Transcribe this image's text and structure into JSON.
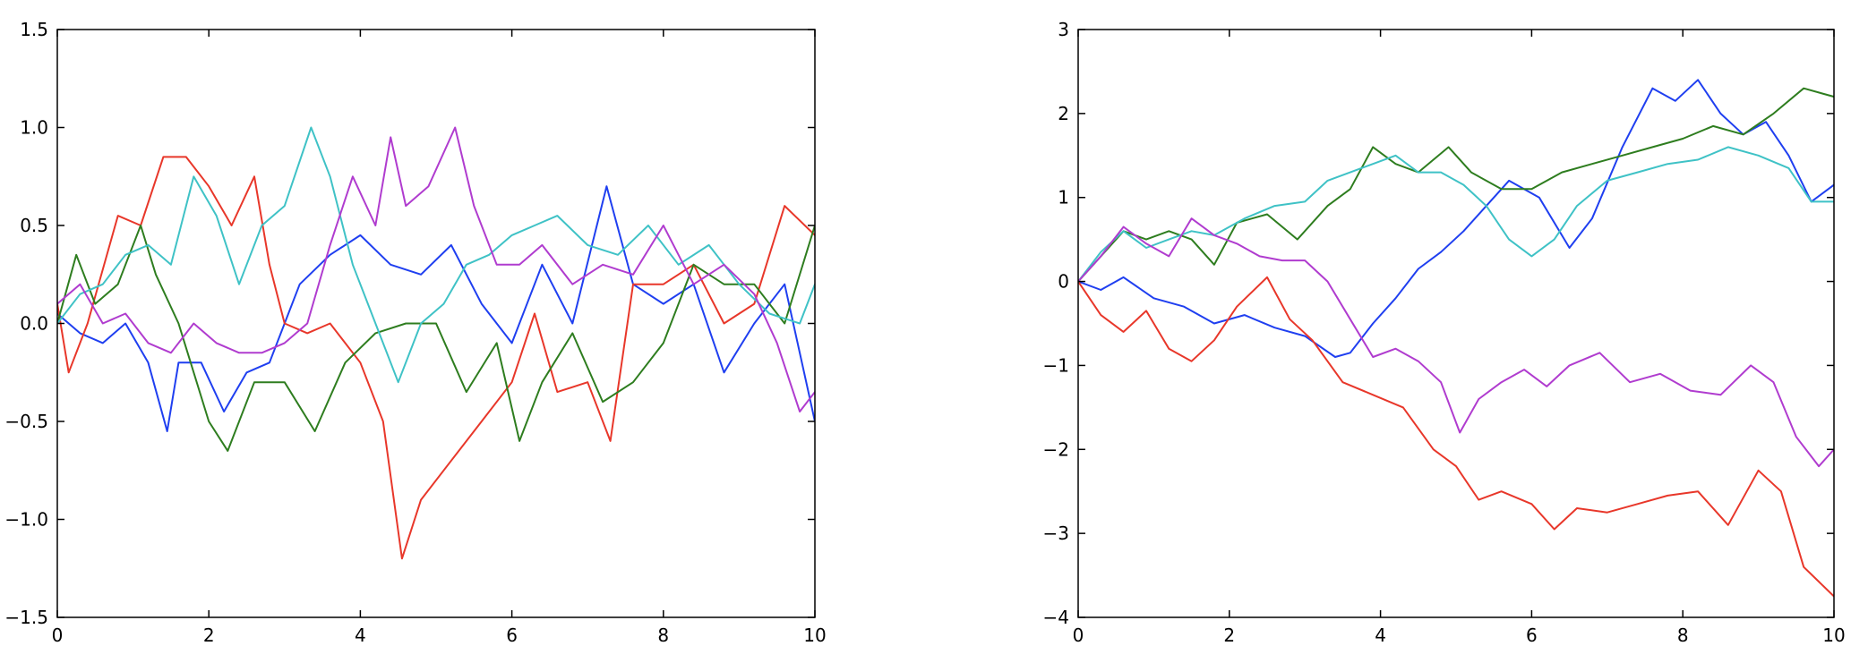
{
  "chart_data": [
    {
      "type": "line",
      "title": "",
      "xlabel": "",
      "ylabel": "",
      "xlim": [
        0,
        10
      ],
      "ylim": [
        -1.5,
        1.5
      ],
      "xticks": [
        0,
        2,
        4,
        6,
        8,
        10
      ],
      "xtick_labels": [
        "0",
        "2",
        "4",
        "6",
        "8",
        "10"
      ],
      "yticks": [
        -1.5,
        -1.0,
        -0.5,
        0.0,
        0.5,
        1.0,
        1.5
      ],
      "ytick_labels": [
        "−1.5",
        "−1.0",
        "−0.5",
        "0.0",
        "0.5",
        "1.0",
        "1.5"
      ],
      "grid": false,
      "legend": "none",
      "series": [
        {
          "color": "#1f3ff0",
          "x": [
            0,
            0.3,
            0.6,
            0.9,
            1.2,
            1.45,
            1.6,
            1.9,
            2.2,
            2.5,
            2.8,
            3.2,
            3.6,
            4.0,
            4.4,
            4.8,
            5.2,
            5.6,
            6.0,
            6.4,
            6.8,
            7.25,
            7.6,
            8.0,
            8.4,
            8.8,
            9.2,
            9.6,
            10.0
          ],
          "y": [
            0.05,
            -0.05,
            -0.1,
            0.0,
            -0.2,
            -0.55,
            -0.2,
            -0.2,
            -0.45,
            -0.25,
            -0.2,
            0.2,
            0.35,
            0.45,
            0.3,
            0.25,
            0.4,
            0.1,
            -0.1,
            0.3,
            0.0,
            0.7,
            0.2,
            0.1,
            0.2,
            -0.25,
            0.0,
            0.2,
            -0.5
          ]
        },
        {
          "color": "#e8372a",
          "x": [
            0,
            0.15,
            0.4,
            0.8,
            1.1,
            1.4,
            1.7,
            2.0,
            2.3,
            2.6,
            2.8,
            3.0,
            3.3,
            3.6,
            4.0,
            4.3,
            4.55,
            4.8,
            5.2,
            5.6,
            6.0,
            6.3,
            6.6,
            7.0,
            7.3,
            7.6,
            8.0,
            8.4,
            8.8,
            9.2,
            9.6,
            10.0
          ],
          "y": [
            0.1,
            -0.25,
            0.0,
            0.55,
            0.5,
            0.85,
            0.85,
            0.7,
            0.5,
            0.75,
            0.3,
            0.0,
            -0.05,
            0.0,
            -0.2,
            -0.5,
            -1.2,
            -0.9,
            -0.7,
            -0.5,
            -0.3,
            0.05,
            -0.35,
            -0.3,
            -0.6,
            0.2,
            0.2,
            0.3,
            0.0,
            0.1,
            0.6,
            0.45
          ]
        },
        {
          "color": "#2e7d1f",
          "x": [
            0,
            0.25,
            0.5,
            0.8,
            1.1,
            1.3,
            1.6,
            2.0,
            2.25,
            2.6,
            3.0,
            3.4,
            3.8,
            4.2,
            4.6,
            5.0,
            5.4,
            5.8,
            6.1,
            6.4,
            6.8,
            7.2,
            7.6,
            8.0,
            8.4,
            8.8,
            9.2,
            9.6,
            10.0
          ],
          "y": [
            0.0,
            0.35,
            0.1,
            0.2,
            0.5,
            0.25,
            0.0,
            -0.5,
            -0.65,
            -0.3,
            -0.3,
            -0.55,
            -0.2,
            -0.05,
            0.0,
            0.0,
            -0.35,
            -0.1,
            -0.6,
            -0.3,
            -0.05,
            -0.4,
            -0.3,
            -0.1,
            0.3,
            0.2,
            0.2,
            0.0,
            0.5
          ]
        },
        {
          "color": "#3fc2c6",
          "x": [
            0,
            0.3,
            0.6,
            0.9,
            1.2,
            1.5,
            1.8,
            2.1,
            2.4,
            2.7,
            3.0,
            3.35,
            3.6,
            3.9,
            4.2,
            4.5,
            4.8,
            5.1,
            5.4,
            5.7,
            6.0,
            6.3,
            6.6,
            7.0,
            7.4,
            7.8,
            8.2,
            8.6,
            9.0,
            9.4,
            9.8,
            10.0
          ],
          "y": [
            0.0,
            0.15,
            0.2,
            0.35,
            0.4,
            0.3,
            0.75,
            0.55,
            0.2,
            0.5,
            0.6,
            1.0,
            0.75,
            0.3,
            0.0,
            -0.3,
            0.0,
            0.1,
            0.3,
            0.35,
            0.45,
            0.5,
            0.55,
            0.4,
            0.35,
            0.5,
            0.3,
            0.4,
            0.2,
            0.05,
            0.0,
            0.2
          ]
        },
        {
          "color": "#b03ccf",
          "x": [
            0,
            0.3,
            0.6,
            0.9,
            1.2,
            1.5,
            1.8,
            2.1,
            2.4,
            2.7,
            3.0,
            3.3,
            3.6,
            3.9,
            4.2,
            4.4,
            4.6,
            4.9,
            5.25,
            5.5,
            5.8,
            6.1,
            6.4,
            6.8,
            7.2,
            7.6,
            8.0,
            8.4,
            8.8,
            9.2,
            9.5,
            9.8,
            10.0
          ],
          "y": [
            0.1,
            0.2,
            0.0,
            0.05,
            -0.1,
            -0.15,
            0.0,
            -0.1,
            -0.15,
            -0.15,
            -0.1,
            0.0,
            0.4,
            0.75,
            0.5,
            0.95,
            0.6,
            0.7,
            1.0,
            0.6,
            0.3,
            0.3,
            0.4,
            0.2,
            0.3,
            0.25,
            0.5,
            0.2,
            0.3,
            0.15,
            -0.1,
            -0.45,
            -0.35
          ]
        }
      ]
    },
    {
      "type": "line",
      "title": "",
      "xlabel": "",
      "ylabel": "",
      "xlim": [
        0,
        10
      ],
      "ylim": [
        -4,
        3
      ],
      "xticks": [
        0,
        2,
        4,
        6,
        8,
        10
      ],
      "xtick_labels": [
        "0",
        "2",
        "4",
        "6",
        "8",
        "10"
      ],
      "yticks": [
        -4,
        -3,
        -2,
        -1,
        0,
        1,
        2,
        3
      ],
      "ytick_labels": [
        "−4",
        "−3",
        "−2",
        "−1",
        "0",
        "1",
        "2",
        "3"
      ],
      "grid": false,
      "legend": "none",
      "series": [
        {
          "color": "#1f3ff0",
          "x": [
            0,
            0.3,
            0.6,
            1.0,
            1.4,
            1.8,
            2.2,
            2.6,
            3.0,
            3.4,
            3.6,
            3.9,
            4.2,
            4.5,
            4.8,
            5.1,
            5.4,
            5.7,
            6.1,
            6.5,
            6.8,
            7.2,
            7.6,
            7.9,
            8.2,
            8.5,
            8.8,
            9.1,
            9.4,
            9.7,
            10.0
          ],
          "y": [
            0.0,
            -0.1,
            0.05,
            -0.2,
            -0.3,
            -0.5,
            -0.4,
            -0.55,
            -0.65,
            -0.9,
            -0.85,
            -0.5,
            -0.2,
            0.15,
            0.35,
            0.6,
            0.9,
            1.2,
            1.0,
            0.4,
            0.75,
            1.6,
            2.3,
            2.15,
            2.4,
            2.0,
            1.75,
            1.9,
            1.5,
            0.95,
            1.15
          ]
        },
        {
          "color": "#e8372a",
          "x": [
            0,
            0.3,
            0.6,
            0.9,
            1.2,
            1.5,
            1.8,
            2.1,
            2.5,
            2.8,
            3.1,
            3.5,
            3.9,
            4.3,
            4.7,
            5.0,
            5.3,
            5.6,
            6.0,
            6.3,
            6.6,
            7.0,
            7.4,
            7.8,
            8.2,
            8.6,
            9.0,
            9.3,
            9.6,
            10.0
          ],
          "y": [
            0.0,
            -0.4,
            -0.6,
            -0.35,
            -0.8,
            -0.95,
            -0.7,
            -0.3,
            0.05,
            -0.45,
            -0.7,
            -1.2,
            -1.35,
            -1.5,
            -2.0,
            -2.2,
            -2.6,
            -2.5,
            -2.65,
            -2.95,
            -2.7,
            -2.75,
            -2.65,
            -2.55,
            -2.5,
            -2.9,
            -2.25,
            -2.5,
            -3.4,
            -3.75
          ]
        },
        {
          "color": "#2e7d1f",
          "x": [
            0,
            0.3,
            0.6,
            0.9,
            1.2,
            1.5,
            1.8,
            2.1,
            2.5,
            2.9,
            3.3,
            3.6,
            3.9,
            4.2,
            4.5,
            4.9,
            5.2,
            5.6,
            6.0,
            6.4,
            6.8,
            7.2,
            7.6,
            8.0,
            8.4,
            8.8,
            9.2,
            9.6,
            10.0
          ],
          "y": [
            0.0,
            0.3,
            0.6,
            0.5,
            0.6,
            0.5,
            0.2,
            0.7,
            0.8,
            0.5,
            0.9,
            1.1,
            1.6,
            1.4,
            1.3,
            1.6,
            1.3,
            1.1,
            1.1,
            1.3,
            1.4,
            1.5,
            1.6,
            1.7,
            1.85,
            1.75,
            2.0,
            2.3,
            2.2
          ]
        },
        {
          "color": "#3fc2c6",
          "x": [
            0,
            0.3,
            0.6,
            0.9,
            1.2,
            1.5,
            1.8,
            2.2,
            2.6,
            3.0,
            3.3,
            3.6,
            3.9,
            4.2,
            4.5,
            4.8,
            5.1,
            5.4,
            5.7,
            6.0,
            6.3,
            6.6,
            7.0,
            7.4,
            7.8,
            8.2,
            8.6,
            9.0,
            9.4,
            9.7,
            10.0
          ],
          "y": [
            0.0,
            0.35,
            0.6,
            0.4,
            0.5,
            0.6,
            0.55,
            0.75,
            0.9,
            0.95,
            1.2,
            1.3,
            1.4,
            1.5,
            1.3,
            1.3,
            1.15,
            0.9,
            0.5,
            0.3,
            0.5,
            0.9,
            1.2,
            1.3,
            1.4,
            1.45,
            1.6,
            1.5,
            1.35,
            0.95,
            0.95
          ]
        },
        {
          "color": "#b03ccf",
          "x": [
            0,
            0.3,
            0.6,
            0.9,
            1.2,
            1.5,
            1.8,
            2.1,
            2.4,
            2.7,
            3.0,
            3.3,
            3.6,
            3.9,
            4.2,
            4.5,
            4.8,
            5.05,
            5.3,
            5.6,
            5.9,
            6.2,
            6.5,
            6.9,
            7.3,
            7.7,
            8.1,
            8.5,
            8.9,
            9.2,
            9.5,
            9.8,
            10.0
          ],
          "y": [
            0.0,
            0.3,
            0.65,
            0.45,
            0.3,
            0.75,
            0.55,
            0.45,
            0.3,
            0.25,
            0.25,
            0.0,
            -0.45,
            -0.9,
            -0.8,
            -0.95,
            -1.2,
            -1.8,
            -1.4,
            -1.2,
            -1.05,
            -1.25,
            -1.0,
            -0.85,
            -1.2,
            -1.1,
            -1.3,
            -1.35,
            -1.0,
            -1.2,
            -1.85,
            -2.2,
            -2.0
          ]
        }
      ]
    }
  ]
}
